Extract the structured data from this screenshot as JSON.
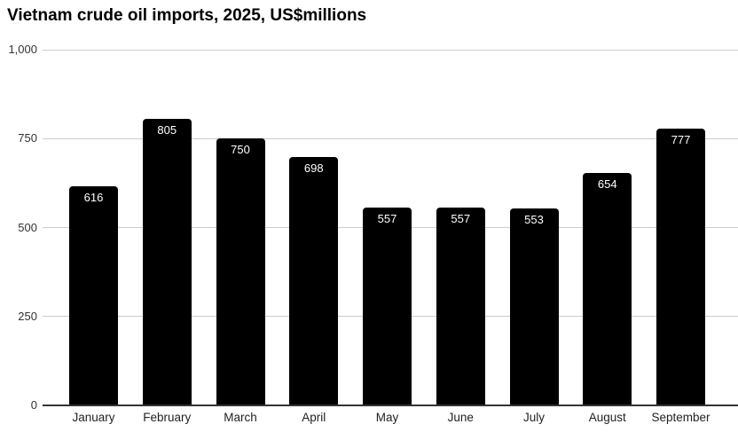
{
  "chart_data": {
    "type": "bar",
    "title": "Vietnam crude oil imports, 2025, US$millions",
    "categories": [
      "January",
      "February",
      "March",
      "April",
      "May",
      "June",
      "July",
      "August",
      "September"
    ],
    "values": [
      616,
      805,
      750,
      698,
      557,
      557,
      553,
      654,
      777
    ],
    "xlabel": "",
    "ylabel": "",
    "ylim": [
      0,
      1000
    ],
    "y_ticks": [
      0,
      250,
      500,
      750,
      1000
    ],
    "y_tick_labels": [
      "0",
      "250",
      "500",
      "750",
      "1,000"
    ],
    "grid": true,
    "legend": "none",
    "colors": {
      "bar": "#000000",
      "value_label": "#ffffff",
      "gridline": "#cccccc",
      "axis_baseline": "#333333",
      "tick_label": "#333333",
      "category_label": "#222222",
      "title": "#000000",
      "background": "#ffffff"
    }
  }
}
